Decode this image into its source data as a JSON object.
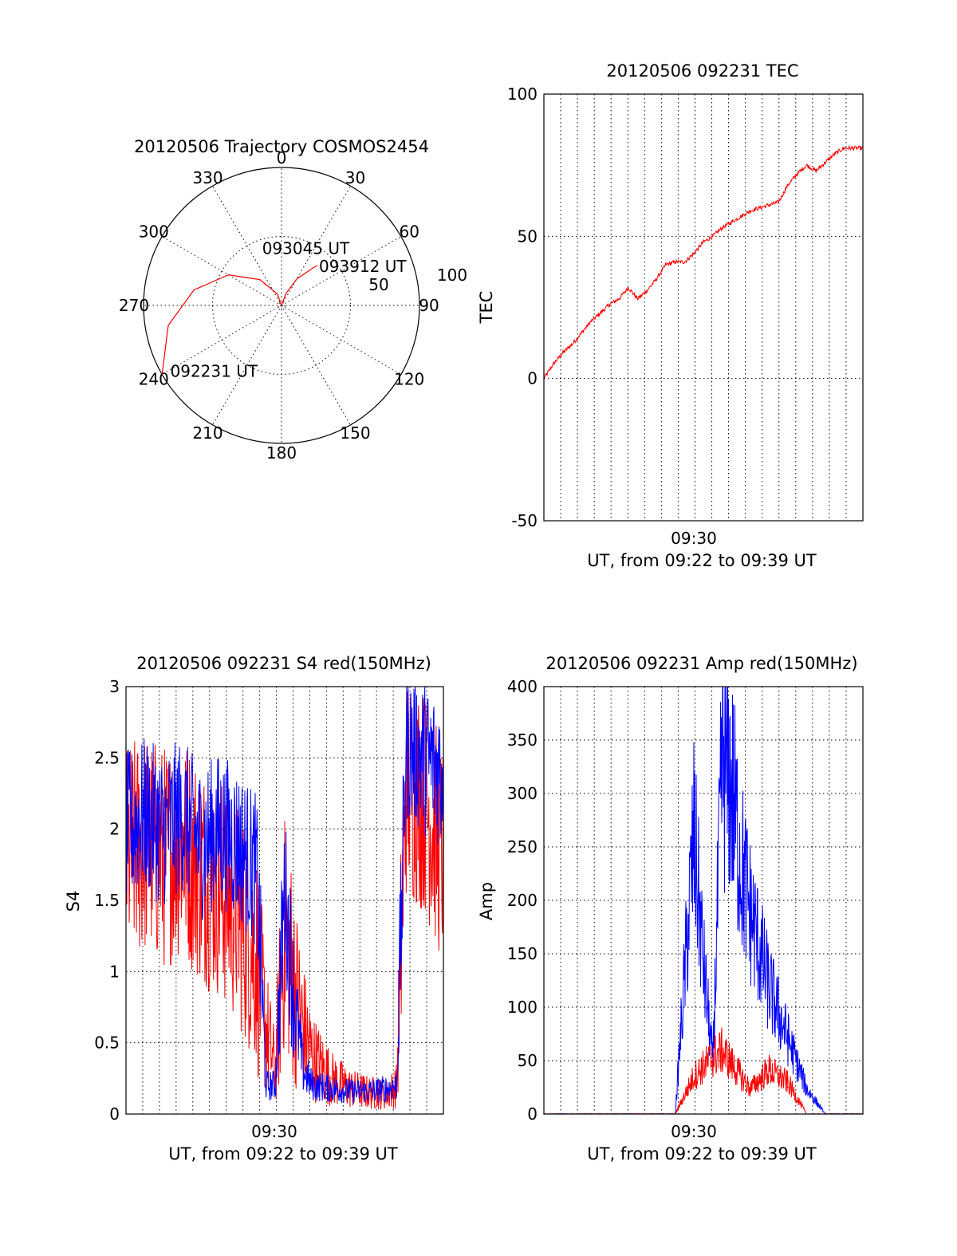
{
  "colors": {
    "red": "#ff0000",
    "blue": "#0000ff",
    "black": "#000000",
    "background": "#ffffff"
  },
  "chart_data": [
    {
      "type": "scatter",
      "projection": "polar",
      "title": "20120506 Trajectory COSMOS2454",
      "azimuth_labels": [
        "0",
        "30",
        "60",
        "90",
        "120",
        "150",
        "180",
        "210",
        "240",
        "270",
        "300",
        "330"
      ],
      "ring_labels": [
        "50",
        "100"
      ],
      "rlim": [
        0,
        100
      ],
      "grid": true,
      "series": [
        {
          "color": "#ff0000",
          "points_az_el": [
            [
              240,
              0
            ],
            [
              260,
              15
            ],
            [
              280,
              32
            ],
            [
              300,
              50
            ],
            [
              320,
              68
            ],
            [
              340,
              82
            ],
            [
              0,
              90
            ],
            [
              20,
              82
            ],
            [
              30,
              70
            ],
            [
              40,
              58
            ],
            [
              42,
              55
            ]
          ]
        }
      ],
      "annotations": [
        {
          "text": "093912 UT",
          "az": 42,
          "el": 55
        },
        {
          "text": "093045 UT",
          "az": 340,
          "el": 50
        },
        {
          "text": "092231 UT",
          "az": 240,
          "el": 5
        }
      ]
    },
    {
      "type": "line",
      "title": "20120506 092231 TEC",
      "xlabel": "UT, from 09:22 to 09:39 UT",
      "ylabel": "TEC",
      "xtick_labels": [
        "09:30"
      ],
      "ylim": [
        -50,
        100
      ],
      "yticks": [
        "-50",
        "0",
        "50",
        "100"
      ],
      "grid": true,
      "series": [
        {
          "color": "#ff0000",
          "x_minutes": [
            0,
            0.5,
            1.0,
            1.5,
            2.0,
            2.5,
            3.0,
            3.5,
            4.0,
            4.5,
            5.0,
            5.5,
            6.0,
            6.5,
            7.0,
            7.5,
            8.0,
            8.5,
            9.0,
            9.5,
            10.0,
            10.5,
            11.0,
            11.5,
            12.0,
            12.5,
            13.0,
            13.5,
            14.0,
            14.5,
            15.0,
            15.5,
            16.0,
            16.5,
            17.0
          ],
          "values": [
            0,
            5,
            9,
            12,
            16,
            20,
            23,
            26,
            28,
            32,
            28,
            31,
            35,
            40,
            41,
            41,
            44,
            48,
            50,
            53,
            55,
            57,
            59,
            60,
            61,
            62,
            68,
            72,
            75,
            73,
            76,
            79,
            81,
            81,
            81
          ]
        }
      ]
    },
    {
      "type": "line",
      "title": "20120506 092231 S4 red(150MHz)",
      "xlabel": "UT, from 09:22 to 09:39 UT",
      "ylabel": "S4",
      "xtick_labels": [
        "09:30"
      ],
      "ylim": [
        0,
        3
      ],
      "yticks": [
        "0",
        "0.5",
        "1",
        "1.5",
        "2",
        "2.5",
        "3"
      ],
      "grid": true,
      "series": [
        {
          "color": "#ff0000",
          "x_minutes": [
            0,
            1,
            2,
            3,
            4,
            5,
            6,
            7,
            7.5,
            8,
            8.5,
            9,
            9.5,
            10,
            11,
            12,
            13,
            14,
            14.5,
            15,
            16,
            17
          ],
          "values": [
            1.8,
            1.9,
            1.8,
            1.9,
            1.7,
            1.6,
            1.4,
            1.1,
            0.6,
            0.3,
            1.3,
            0.9,
            0.6,
            0.4,
            0.25,
            0.18,
            0.15,
            0.14,
            0.2,
            2.3,
            2.2,
            1.8
          ]
        },
        {
          "color": "#0000ff",
          "x_minutes": [
            0,
            1,
            2,
            3,
            4,
            5,
            6,
            7,
            7.5,
            8,
            8.5,
            9,
            9.5,
            10,
            11,
            12,
            13,
            14,
            14.5,
            15,
            16,
            17
          ],
          "values": [
            2.0,
            2.1,
            2.0,
            2.1,
            1.9,
            2.0,
            1.9,
            1.7,
            0.2,
            0.2,
            1.6,
            0.8,
            0.3,
            0.2,
            0.18,
            0.16,
            0.16,
            0.18,
            0.2,
            2.6,
            2.5,
            2.4
          ]
        }
      ]
    },
    {
      "type": "line",
      "title": "20120506 092231 Amp red(150MHz)",
      "xlabel": "UT, from 09:22 to 09:39 UT",
      "ylabel": "Amp",
      "xtick_labels": [
        "09:30"
      ],
      "ylim": [
        0,
        400
      ],
      "yticks": [
        "0",
        "50",
        "100",
        "150",
        "200",
        "250",
        "300",
        "350",
        "400"
      ],
      "grid": true,
      "series": [
        {
          "color": "#ff0000",
          "x_minutes": [
            0,
            7,
            8,
            9,
            9.5,
            10,
            11,
            12,
            13,
            14,
            15,
            16,
            17
          ],
          "values": [
            0,
            0,
            30,
            45,
            50,
            40,
            20,
            35,
            25,
            0,
            0,
            0,
            0
          ]
        },
        {
          "color": "#0000ff",
          "x_minutes": [
            0,
            7,
            8,
            8.5,
            9,
            9.5,
            10,
            10.5,
            11,
            12,
            13,
            14,
            15,
            16,
            17
          ],
          "values": [
            0,
            0,
            220,
            120,
            40,
            280,
            260,
            200,
            160,
            100,
            60,
            20,
            0,
            0,
            0
          ]
        }
      ]
    }
  ]
}
